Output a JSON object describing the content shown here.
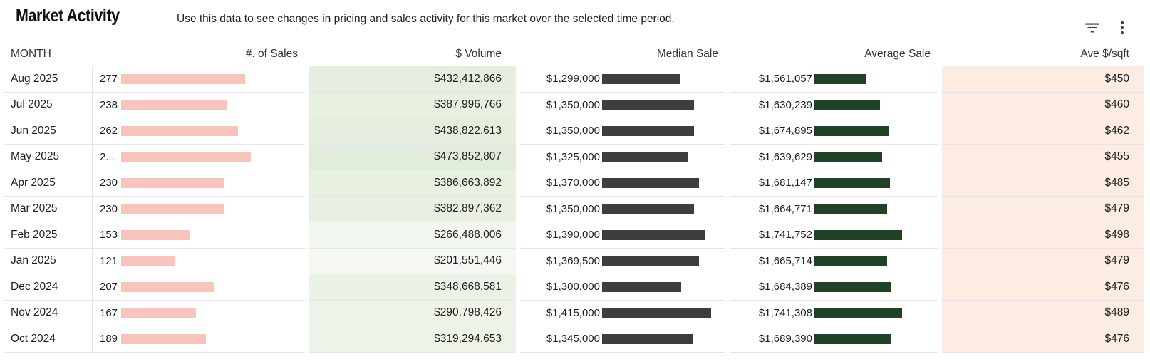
{
  "header": {
    "title": "Market Activity",
    "subtitle": "Use this data to see changes in pricing and sales activity for this market over the selected time period."
  },
  "icons": {
    "filter": "filter-icon",
    "menu": "more-vert-icon"
  },
  "colors": {
    "sales_bar": "#f7c5bb",
    "median_bar": "#3d3d3d",
    "average_bar": "#1f4226",
    "ppsf_bg": "#fcece1"
  },
  "table": {
    "columns": {
      "month": "MONTH",
      "sales": "#. of Sales",
      "volume": "$ Volume",
      "median": "Median Sale",
      "average": "Average Sale",
      "ppsf": "Ave $/sqft"
    },
    "rows": [
      {
        "month": "Aug 2025",
        "sales_label": "277",
        "sales": 277,
        "volume": "$432,412,866",
        "volume_bg": "#e6efdf",
        "median_label": "$1,299,000",
        "median": 1299000,
        "average_label": "$1,561,057",
        "average": 1561057,
        "ppsf": "$450"
      },
      {
        "month": "Jul 2025",
        "sales_label": "238",
        "sales": 238,
        "volume": "$387,996,766",
        "volume_bg": "#e8f0e2",
        "median_label": "$1,350,000",
        "median": 1350000,
        "average_label": "$1,630,239",
        "average": 1630239,
        "ppsf": "$460"
      },
      {
        "month": "Jun 2025",
        "sales_label": "262",
        "sales": 262,
        "volume": "$438,822,613",
        "volume_bg": "#e5eede",
        "median_label": "$1,350,000",
        "median": 1350000,
        "average_label": "$1,674,895",
        "average": 1674895,
        "ppsf": "$462"
      },
      {
        "month": "May 2025",
        "sales_label": "2...",
        "sales": 290,
        "volume": "$473,852,807",
        "volume_bg": "#e2ecdb",
        "median_label": "$1,325,000",
        "median": 1325000,
        "average_label": "$1,639,629",
        "average": 1639629,
        "ppsf": "$455"
      },
      {
        "month": "Apr 2025",
        "sales_label": "230",
        "sales": 230,
        "volume": "$386,663,892",
        "volume_bg": "#e8f0e2",
        "median_label": "$1,370,000",
        "median": 1370000,
        "average_label": "$1,681,147",
        "average": 1681147,
        "ppsf": "$485"
      },
      {
        "month": "Mar 2025",
        "sales_label": "230",
        "sales": 230,
        "volume": "$382,897,362",
        "volume_bg": "#e9f0e3",
        "median_label": "$1,350,000",
        "median": 1350000,
        "average_label": "$1,664,771",
        "average": 1664771,
        "ppsf": "$479"
      },
      {
        "month": "Feb 2025",
        "sales_label": "153",
        "sales": 153,
        "volume": "$266,488,006",
        "volume_bg": "#f1f6ee",
        "median_label": "$1,390,000",
        "median": 1390000,
        "average_label": "$1,741,752",
        "average": 1741752,
        "ppsf": "$498"
      },
      {
        "month": "Jan 2025",
        "sales_label": "121",
        "sales": 121,
        "volume": "$201,551,446",
        "volume_bg": "#f5f8f2",
        "median_label": "$1,369,500",
        "median": 1369500,
        "average_label": "$1,665,714",
        "average": 1665714,
        "ppsf": "$479"
      },
      {
        "month": "Dec 2024",
        "sales_label": "207",
        "sales": 207,
        "volume": "$348,668,581",
        "volume_bg": "#ebf2e6",
        "median_label": "$1,300,000",
        "median": 1300000,
        "average_label": "$1,684,389",
        "average": 1684389,
        "ppsf": "$476"
      },
      {
        "month": "Nov 2024",
        "sales_label": "167",
        "sales": 167,
        "volume": "$290,798,426",
        "volume_bg": "#eff4eb",
        "median_label": "$1,415,000",
        "median": 1415000,
        "average_label": "$1,741,308",
        "average": 1741308,
        "ppsf": "$489"
      },
      {
        "month": "Oct 2024",
        "sales_label": "189",
        "sales": 189,
        "volume": "$319,294,653",
        "volume_bg": "#edf3e8",
        "median_label": "$1,345,000",
        "median": 1345000,
        "average_label": "$1,689,390",
        "average": 1689390,
        "ppsf": "$476"
      }
    ]
  }
}
